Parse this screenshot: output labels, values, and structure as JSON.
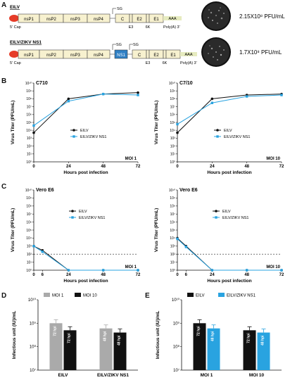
{
  "panels": {
    "a": "A",
    "b": "B",
    "c": "C",
    "d": "D",
    "e": "E"
  },
  "panel_a": {
    "constructs": [
      {
        "name": "EILV",
        "titer": "2.15X10⁸ PFU/mL"
      },
      {
        "name": "EILV/ZIKV NS1",
        "titer": "1.7X10⁸ PFU/mL"
      }
    ],
    "genes_top": [
      "nsP1",
      "nsP2",
      "nsP3",
      "nsP4",
      "C",
      "E2",
      "E1"
    ],
    "genes_small": {
      "sg": "SG",
      "e3": "E3",
      "k6": "6K",
      "cap": "5' Cap",
      "polya": "Poly(A) 3'",
      "aaa": "AAA",
      "ns1": "NS1"
    }
  },
  "colors": {
    "eilv": "#111111",
    "ns1": "#29a3e0",
    "moi1": "#aaaaaa",
    "gene_fill": "#f7f1cf",
    "cap": "#e63c28",
    "ns1_box": "#2f7fc4"
  },
  "axes": {
    "virus_titer": "Virus Titer (PFU/mL)",
    "hours": "Hours post infection",
    "infectious": "Infectious unit (IU)/mL",
    "x_ticks": [
      "0",
      "24",
      "48",
      "72"
    ],
    "c_x_ticks": [
      "0",
      "6",
      "24",
      "48",
      "72"
    ],
    "y_ticks": [
      "10⁰",
      "10¹",
      "10²",
      "10³",
      "10⁴",
      "10⁵",
      "10⁶",
      "10⁷",
      "10⁸",
      "10⁹",
      "10¹⁰"
    ],
    "de_y_ticks": [
      "10⁷",
      "10⁸",
      "10⁹",
      "10¹⁰"
    ]
  },
  "chart_data": [
    {
      "panel": "B",
      "title": "C710",
      "type": "line",
      "annotation": "MOI 1",
      "x": [
        0,
        24,
        48,
        72
      ],
      "series": [
        {
          "name": "EILV",
          "values": [
            5000,
            100000000,
            400000000,
            600000000
          ]
        },
        {
          "name": "EILV/ZIKV NS1",
          "values": [
            40000,
            50000000,
            400000000,
            300000000
          ]
        }
      ]
    },
    {
      "panel": "B",
      "title": "C7/10",
      "type": "line",
      "annotation": "MOI 10",
      "x": [
        0,
        24,
        48,
        72
      ],
      "series": [
        {
          "name": "EILV",
          "values": [
            5000,
            100000000,
            300000000,
            400000000
          ]
        },
        {
          "name": "EILV/ZIKV NS1",
          "values": [
            60000,
            30000000,
            200000000,
            300000000
          ]
        }
      ]
    },
    {
      "panel": "C",
      "title": "Vero E6",
      "type": "line",
      "annotation": "MOI 1",
      "x": [
        0,
        6,
        24,
        48,
        72
      ],
      "dashed_limit": 100,
      "series": [
        {
          "name": "EILV",
          "values": [
            1000,
            300,
            1,
            1,
            1
          ]
        },
        {
          "name": "EILV/ZIKV NS1",
          "values": [
            1000,
            200,
            1,
            1,
            1
          ]
        }
      ]
    },
    {
      "panel": "C",
      "title": "Vero E6",
      "type": "line",
      "annotation": "MOI 10",
      "x": [
        0,
        6,
        24,
        48,
        72
      ],
      "dashed_limit": 100,
      "series": [
        {
          "name": "EILV",
          "values": [
            10000,
            1000,
            1,
            1,
            1
          ]
        },
        {
          "name": "EILV/ZIKV NS1",
          "values": [
            8000,
            800,
            1,
            1,
            1
          ]
        }
      ]
    },
    {
      "panel": "D",
      "type": "bar",
      "categories": [
        "EILV",
        "EILV/ZIKV NS1"
      ],
      "series": [
        {
          "name": "MOI 1",
          "values": [
            1000000000,
            600000000
          ],
          "bar_labels": [
            "72 hpi",
            "48 hpi"
          ]
        },
        {
          "name": "MOI 10",
          "values": [
            500000000,
            400000000
          ],
          "bar_labels": [
            "72 hpi",
            "48 hpi"
          ]
        }
      ]
    },
    {
      "panel": "E",
      "type": "bar",
      "categories": [
        "MOI 1",
        "MOI 10"
      ],
      "series": [
        {
          "name": "EILV",
          "values": [
            1000000000,
            500000000
          ],
          "bar_labels": [
            "72 hpi",
            "72 hpi"
          ]
        },
        {
          "name": "EILV/ZIKV NS1",
          "values": [
            600000000,
            400000000
          ],
          "bar_labels": [
            "48 hpi",
            "48 hpi"
          ]
        }
      ]
    }
  ]
}
